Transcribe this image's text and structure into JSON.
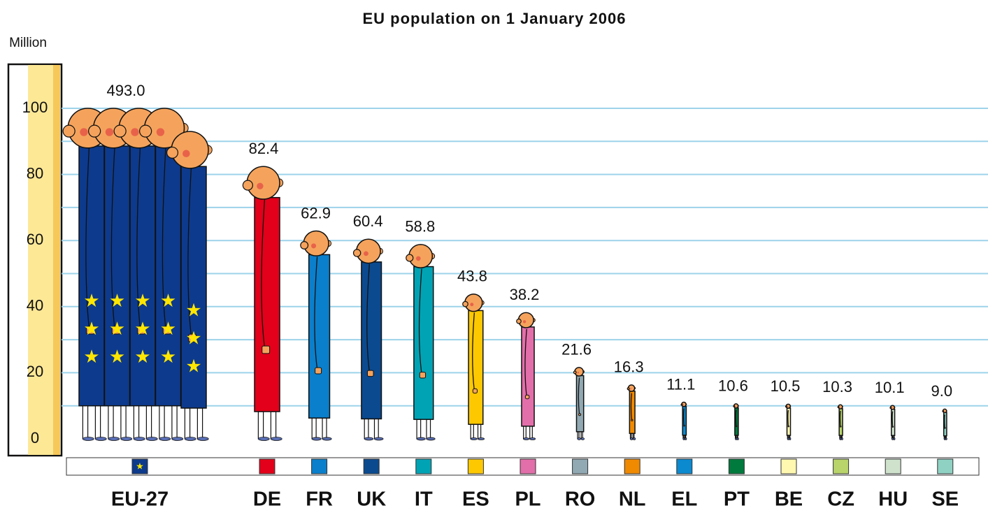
{
  "chart_data": {
    "type": "pictogram",
    "title": "EU population on 1 January 2006",
    "y_label": "Million",
    "categories": [
      "EU-27",
      "DE",
      "FR",
      "UK",
      "IT",
      "ES",
      "PL",
      "RO",
      "NL",
      "EL",
      "PT",
      "BE",
      "CZ",
      "HU",
      "SE"
    ],
    "values": [
      493.0,
      82.4,
      62.9,
      60.4,
      58.8,
      43.8,
      38.2,
      21.6,
      16.3,
      11.1,
      10.6,
      10.5,
      10.3,
      10.1,
      9.0
    ],
    "value_labels": [
      "493.0",
      "82.4",
      "62.9",
      "60.4",
      "58.8",
      "43.8",
      "38.2",
      "21.6",
      "16.3",
      "11.1",
      "10.6",
      "10.5",
      "10.3",
      "10.1",
      "9.0"
    ],
    "colors": [
      "#0d3a8c",
      "#e2001a",
      "#0a7fcb",
      "#0b4a8f",
      "#00a3b4",
      "#fdc800",
      "#e36faa",
      "#90a9b3",
      "#f08a00",
      "#0b8ad0",
      "#007a3d",
      "#fff8b0",
      "#b8d46a",
      "#cfe3cc",
      "#8fd2c3"
    ],
    "ylim": [
      0,
      100
    ],
    "yticks": [
      0,
      20,
      40,
      60,
      80,
      100
    ],
    "yminor_ticks": [
      10,
      30,
      50,
      70,
      90
    ],
    "grid": true
  }
}
